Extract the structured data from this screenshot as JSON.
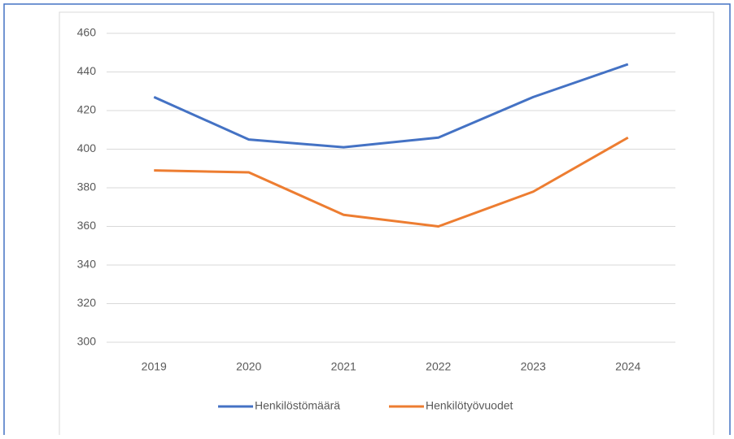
{
  "chart_data": {
    "type": "line",
    "categories": [
      "2019",
      "2020",
      "2021",
      "2022",
      "2023",
      "2024"
    ],
    "series": [
      {
        "name": "Henkilöstömäärä",
        "color": "#4472c4",
        "values": [
          427,
          405,
          401,
          406,
          427,
          444
        ]
      },
      {
        "name": "Henkilötyövuodet",
        "color": "#ed7d31",
        "values": [
          389,
          388,
          366,
          360,
          378,
          406
        ]
      }
    ],
    "ylim": [
      300,
      460
    ],
    "yticks": [
      300,
      320,
      340,
      360,
      380,
      400,
      420,
      440,
      460
    ],
    "grid": true,
    "legend": "bottom"
  }
}
